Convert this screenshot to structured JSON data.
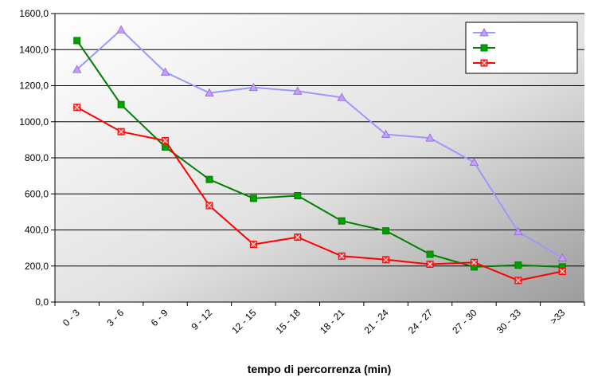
{
  "chart_data": {
    "type": "line",
    "title": "",
    "xlabel": "tempo di percorrenza (min)",
    "ylabel": "",
    "categories": [
      "0 - 3",
      "3 - 6",
      "6 - 9",
      "9 - 12",
      "12 - 15",
      "15 - 18",
      "18 - 21",
      "21 - 24",
      "24 - 27",
      "27 - 30",
      "30 - 33",
      ">33"
    ],
    "ylim": [
      0,
      1600
    ],
    "yticks": [
      0,
      200,
      400,
      600,
      800,
      1000,
      1200,
      1400,
      1600
    ],
    "ytick_labels": [
      "0,0",
      "200,0",
      "400,0",
      "600,0",
      "800,0",
      "1000,0",
      "1200,0",
      "1400,0",
      "1600,0"
    ],
    "grid": true,
    "legend_position": "top-right",
    "series": [
      {
        "marker": "triangle",
        "color": "#9999ff",
        "marker_fill": "#cc99ff",
        "values": [
          1290,
          1510,
          1275,
          1160,
          1190,
          1170,
          1135,
          930,
          910,
          775,
          390,
          245
        ]
      },
      {
        "marker": "square",
        "color": "#008000",
        "marker_fill": "#00a000",
        "values": [
          1450,
          1095,
          860,
          680,
          575,
          590,
          450,
          395,
          265,
          195,
          205,
          195
        ]
      },
      {
        "marker": "square-x",
        "color": "#ff0000",
        "marker_fill": "#ff3333",
        "values": [
          1080,
          945,
          895,
          535,
          320,
          360,
          255,
          235,
          210,
          220,
          120,
          170
        ]
      }
    ]
  }
}
